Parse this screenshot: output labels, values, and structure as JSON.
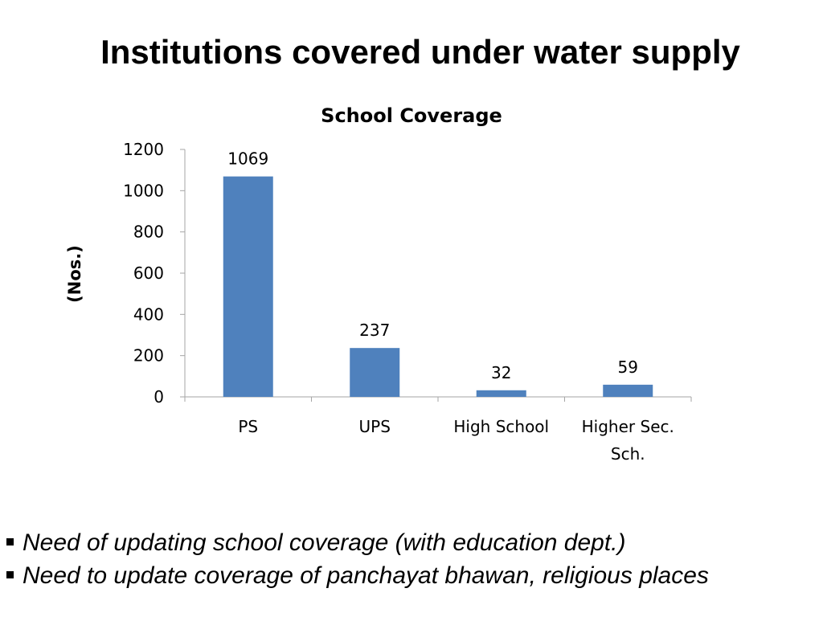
{
  "slide": {
    "title": "Institutions covered under water supply"
  },
  "chart_data": {
    "type": "bar",
    "title": "School Coverage",
    "ylabel": "(Nos.)",
    "xlabel": "",
    "categories": [
      [
        "PS"
      ],
      [
        "UPS"
      ],
      [
        "High School"
      ],
      [
        "Higher Sec.",
        "Sch."
      ]
    ],
    "values": [
      1069,
      237,
      32,
      59
    ],
    "data_labels": [
      "1069",
      "237",
      "32",
      "59"
    ],
    "ylim": [
      0,
      1200
    ],
    "yticks": [
      0,
      200,
      400,
      600,
      800,
      1000,
      1200
    ],
    "grid": false,
    "legend": "none",
    "bar_color": "#4F81BD",
    "axis_color": "#A6A6A6"
  },
  "bullets": [
    "Need of updating school coverage (with education dept.)",
    "Need to update coverage of panchayat bhawan, religious places"
  ]
}
